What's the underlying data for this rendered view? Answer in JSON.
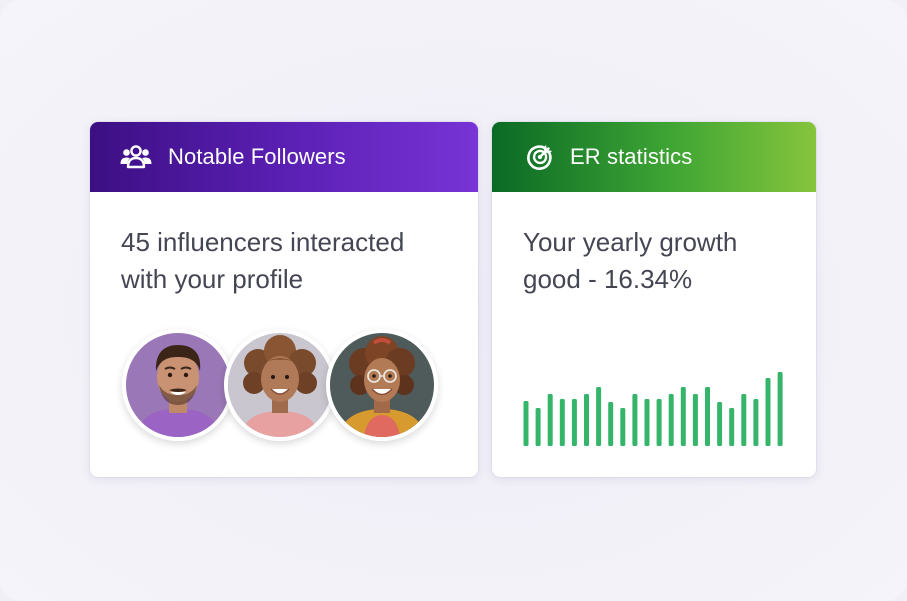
{
  "notable_followers": {
    "title": "Notable Followers",
    "icon": "users-icon",
    "text_line1": "45 influencers interacted",
    "text_line2": "with your profile",
    "avatars": [
      {
        "name": "avatar-man"
      },
      {
        "name": "avatar-woman-curly"
      },
      {
        "name": "avatar-woman-glasses"
      }
    ]
  },
  "er_statistics": {
    "title": "ER statistics",
    "icon": "target-growth-icon",
    "text_line1": "Your yearly growth",
    "text_line2": "good - 16.34%"
  },
  "chart_data": {
    "type": "bar",
    "values": [
      45,
      38,
      52,
      47,
      47,
      52,
      59,
      44,
      38,
      52,
      47,
      47,
      52,
      59,
      52,
      59,
      44,
      38,
      52,
      47,
      68,
      74
    ]
  },
  "colors": {
    "purple_start": "#3c0f83",
    "purple_end": "#7834d6",
    "green_start": "#0a6a25",
    "green_end": "#86c43c",
    "bar": "#34b56a",
    "text": "#454654"
  }
}
